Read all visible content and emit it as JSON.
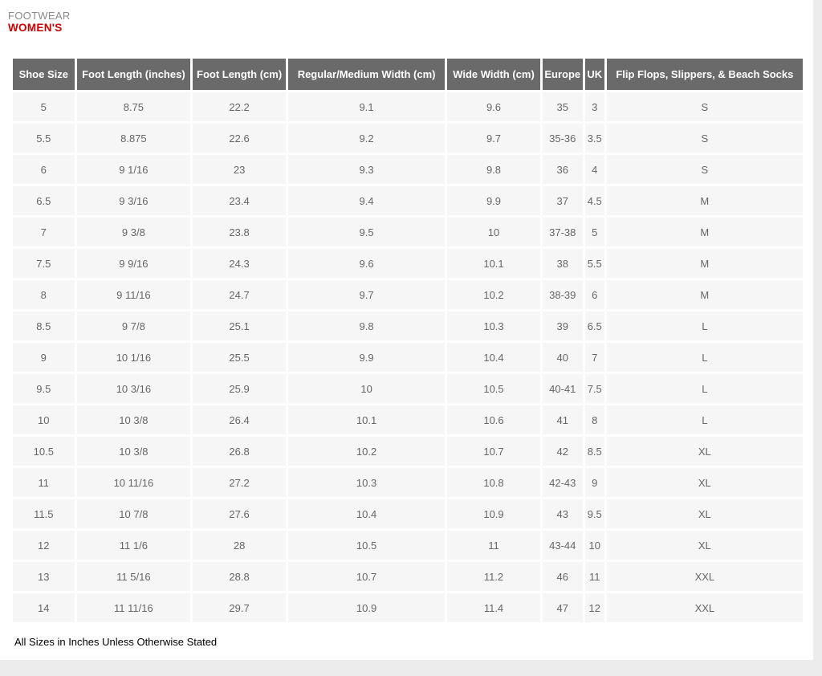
{
  "header": {
    "section": "FOOTWEAR",
    "category": "WOMEN'S"
  },
  "chart_data": {
    "type": "table",
    "title": "FOOTWEAR WOMEN'S",
    "columns": [
      "Shoe Size",
      "Foot Length (inches)",
      "Foot Length (cm)",
      "Regular/Medium Width (cm)",
      "Wide Width (cm)",
      "Europe",
      "UK",
      "Flip Flops, Slippers, & Beach Socks"
    ],
    "rows": [
      [
        "5",
        "8.75",
        "22.2",
        "9.1",
        "9.6",
        "35",
        "3",
        "S"
      ],
      [
        "5.5",
        "8.875",
        "22.6",
        "9.2",
        "9.7",
        "35-36",
        "3.5",
        "S"
      ],
      [
        "6",
        "9 1/16",
        "23",
        "9.3",
        "9.8",
        "36",
        "4",
        "S"
      ],
      [
        "6.5",
        "9 3/16",
        "23.4",
        "9.4",
        "9.9",
        "37",
        "4.5",
        "M"
      ],
      [
        "7",
        "9 3/8",
        "23.8",
        "9.5",
        "10",
        "37-38",
        "5",
        "M"
      ],
      [
        "7.5",
        "9 9/16",
        "24.3",
        "9.6",
        "10.1",
        "38",
        "5.5",
        "M"
      ],
      [
        "8",
        "9 11/16",
        "24.7",
        "9.7",
        "10.2",
        "38-39",
        "6",
        "M"
      ],
      [
        "8.5",
        "9 7/8",
        "25.1",
        "9.8",
        "10.3",
        "39",
        "6.5",
        "L"
      ],
      [
        "9",
        "10 1/16",
        "25.5",
        "9.9",
        "10.4",
        "40",
        "7",
        "L"
      ],
      [
        "9.5",
        "10 3/16",
        "25.9",
        "10",
        "10.5",
        "40-41",
        "7.5",
        "L"
      ],
      [
        "10",
        "10 3/8",
        "26.4",
        "10.1",
        "10.6",
        "41",
        "8",
        "L"
      ],
      [
        "10.5",
        "10 3/8",
        "26.8",
        "10.2",
        "10.7",
        "42",
        "8.5",
        "XL"
      ],
      [
        "11",
        "10 11/16",
        "27.2",
        "10.3",
        "10.8",
        "42-43",
        "9",
        "XL"
      ],
      [
        "11.5",
        "10 7/8",
        "27.6",
        "10.4",
        "10.9",
        "43",
        "9.5",
        "XL"
      ],
      [
        "12",
        "11 1/6",
        "28",
        "10.5",
        "11",
        "43-44",
        "10",
        "XL"
      ],
      [
        "13",
        "11 5/16",
        "28.8",
        "10.7",
        "11.2",
        "46",
        "11",
        "XXL"
      ],
      [
        "14",
        "11 11/16",
        "29.7",
        "10.9",
        "11.4",
        "47",
        "12",
        "XXL"
      ]
    ]
  },
  "footer": {
    "note": "All Sizes in Inches Unless Otherwise Stated"
  },
  "colors": {
    "accent_red": "#cc0000",
    "header_gray": "#6a6a6a",
    "row_bg": "#f6f6f6",
    "page_bg": "#ececec",
    "body_text": "#666666"
  }
}
